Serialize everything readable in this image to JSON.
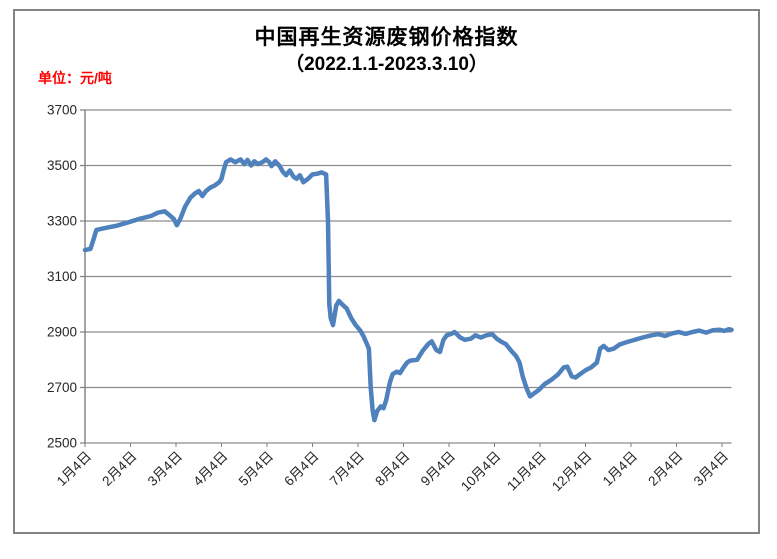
{
  "header": {
    "title": "中国再生资源废钢价格指数",
    "subtitle": "（2022.1.1-2023.3.10）",
    "unit_label": "单位：元/吨"
  },
  "colors": {
    "line": "#4F81BD",
    "grid": "#8C8C8C",
    "axis": "#7F7F7F",
    "frame_border": "#848484",
    "title_text": "#000000",
    "unit_text": "#FF0000",
    "tick_text": "#262626"
  },
  "chart_data": {
    "type": "line",
    "title": "中国再生资源废钢价格指数",
    "subtitle": "（2022.1.1-2023.3.10）",
    "ylabel": "元/吨",
    "ylim": [
      2500,
      3700
    ],
    "y_ticks": [
      3700,
      3500,
      3300,
      3100,
      2900,
      2700,
      2500
    ],
    "x_tick_labels": [
      "1月4日",
      "2月4日",
      "3月4日",
      "4月4日",
      "5月4日",
      "6月4日",
      "7月4日",
      "8月4日",
      "9月4日",
      "10月4日",
      "11月4日",
      "12月4日",
      "1月4日",
      "2月4日",
      "3月4日"
    ],
    "grid": "horizontal-only",
    "legend": "none",
    "x_unit": "months-from-2022-01-04",
    "points": [
      [
        0.0,
        3195
      ],
      [
        0.12,
        3200
      ],
      [
        0.18,
        3230
      ],
      [
        0.25,
        3268
      ],
      [
        0.45,
        3275
      ],
      [
        0.7,
        3283
      ],
      [
        0.95,
        3295
      ],
      [
        1.2,
        3308
      ],
      [
        1.45,
        3318
      ],
      [
        1.6,
        3330
      ],
      [
        1.75,
        3335
      ],
      [
        1.85,
        3322
      ],
      [
        1.95,
        3308
      ],
      [
        2.02,
        3285
      ],
      [
        2.1,
        3310
      ],
      [
        2.2,
        3352
      ],
      [
        2.32,
        3385
      ],
      [
        2.42,
        3400
      ],
      [
        2.5,
        3408
      ],
      [
        2.58,
        3390
      ],
      [
        2.66,
        3408
      ],
      [
        2.75,
        3420
      ],
      [
        2.85,
        3428
      ],
      [
        2.95,
        3440
      ],
      [
        3.0,
        3452
      ],
      [
        3.05,
        3485
      ],
      [
        3.1,
        3512
      ],
      [
        3.2,
        3522
      ],
      [
        3.3,
        3512
      ],
      [
        3.42,
        3522
      ],
      [
        3.5,
        3505
      ],
      [
        3.57,
        3520
      ],
      [
        3.65,
        3500
      ],
      [
        3.72,
        3515
      ],
      [
        3.8,
        3505
      ],
      [
        3.9,
        3512
      ],
      [
        3.98,
        3522
      ],
      [
        4.05,
        3512
      ],
      [
        4.1,
        3498
      ],
      [
        4.18,
        3515
      ],
      [
        4.28,
        3498
      ],
      [
        4.35,
        3477
      ],
      [
        4.42,
        3465
      ],
      [
        4.5,
        3482
      ],
      [
        4.58,
        3460
      ],
      [
        4.65,
        3452
      ],
      [
        4.72,
        3465
      ],
      [
        4.8,
        3440
      ],
      [
        4.9,
        3452
      ],
      [
        5.0,
        3468
      ],
      [
        5.1,
        3470
      ],
      [
        5.2,
        3475
      ],
      [
        5.3,
        3468
      ],
      [
        5.34,
        3300
      ],
      [
        5.37,
        3000
      ],
      [
        5.4,
        2950
      ],
      [
        5.45,
        2925
      ],
      [
        5.52,
        2995
      ],
      [
        5.58,
        3012
      ],
      [
        5.65,
        3000
      ],
      [
        5.75,
        2985
      ],
      [
        5.85,
        2950
      ],
      [
        5.95,
        2925
      ],
      [
        6.05,
        2905
      ],
      [
        6.12,
        2885
      ],
      [
        6.2,
        2855
      ],
      [
        6.24,
        2840
      ],
      [
        6.28,
        2700
      ],
      [
        6.32,
        2620
      ],
      [
        6.36,
        2582
      ],
      [
        6.42,
        2615
      ],
      [
        6.5,
        2632
      ],
      [
        6.56,
        2625
      ],
      [
        6.62,
        2655
      ],
      [
        6.7,
        2718
      ],
      [
        6.76,
        2748
      ],
      [
        6.85,
        2757
      ],
      [
        6.92,
        2752
      ],
      [
        7.0,
        2772
      ],
      [
        7.08,
        2790
      ],
      [
        7.15,
        2797
      ],
      [
        7.3,
        2800
      ],
      [
        7.42,
        2832
      ],
      [
        7.55,
        2858
      ],
      [
        7.62,
        2866
      ],
      [
        7.72,
        2835
      ],
      [
        7.8,
        2828
      ],
      [
        7.88,
        2872
      ],
      [
        7.95,
        2888
      ],
      [
        8.05,
        2893
      ],
      [
        8.12,
        2900
      ],
      [
        8.25,
        2880
      ],
      [
        8.35,
        2872
      ],
      [
        8.48,
        2876
      ],
      [
        8.58,
        2888
      ],
      [
        8.7,
        2880
      ],
      [
        8.82,
        2888
      ],
      [
        8.95,
        2892
      ],
      [
        9.05,
        2876
      ],
      [
        9.15,
        2865
      ],
      [
        9.25,
        2856
      ],
      [
        9.38,
        2830
      ],
      [
        9.48,
        2812
      ],
      [
        9.55,
        2790
      ],
      [
        9.62,
        2740
      ],
      [
        9.7,
        2700
      ],
      [
        9.78,
        2668
      ],
      [
        9.88,
        2680
      ],
      [
        9.98,
        2692
      ],
      [
        10.1,
        2712
      ],
      [
        10.25,
        2728
      ],
      [
        10.4,
        2748
      ],
      [
        10.52,
        2772
      ],
      [
        10.6,
        2775
      ],
      [
        10.7,
        2740
      ],
      [
        10.78,
        2736
      ],
      [
        10.88,
        2748
      ],
      [
        11.0,
        2762
      ],
      [
        11.12,
        2772
      ],
      [
        11.25,
        2790
      ],
      [
        11.32,
        2840
      ],
      [
        11.4,
        2850
      ],
      [
        11.5,
        2835
      ],
      [
        11.62,
        2840
      ],
      [
        11.75,
        2855
      ],
      [
        11.88,
        2862
      ],
      [
        12.0,
        2868
      ],
      [
        12.15,
        2875
      ],
      [
        12.3,
        2882
      ],
      [
        12.45,
        2888
      ],
      [
        12.6,
        2892
      ],
      [
        12.75,
        2886
      ],
      [
        12.9,
        2895
      ],
      [
        13.05,
        2900
      ],
      [
        13.2,
        2893
      ],
      [
        13.35,
        2900
      ],
      [
        13.5,
        2905
      ],
      [
        13.65,
        2898
      ],
      [
        13.8,
        2906
      ],
      [
        13.95,
        2908
      ],
      [
        14.05,
        2904
      ],
      [
        14.15,
        2910
      ],
      [
        14.21,
        2908
      ]
    ]
  },
  "layout_note": "single static line chart, no legend, no other UI controls"
}
